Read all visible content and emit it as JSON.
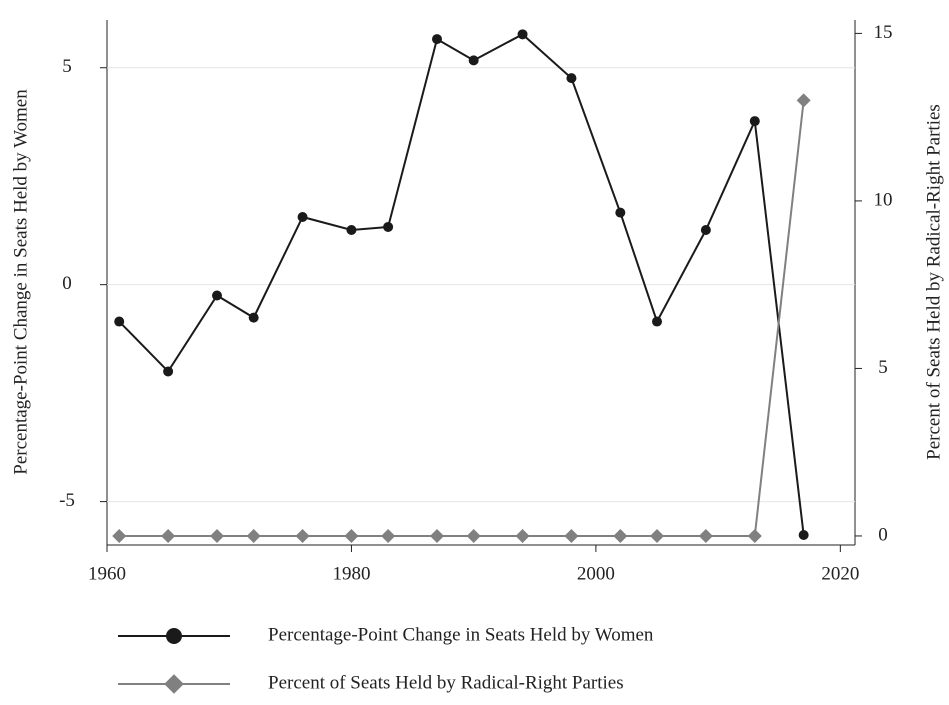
{
  "chart_data": {
    "type": "line",
    "x": [
      1961,
      1965,
      1969,
      1972,
      1976,
      1980,
      1983,
      1987,
      1990,
      1994,
      1998,
      2002,
      2005,
      2009,
      2013,
      2017
    ],
    "xlim": [
      1960,
      2021.2
    ],
    "xticks": [
      1960,
      1980,
      2000,
      2020
    ],
    "ylim": [
      -6,
      6.1
    ],
    "yticks": [
      -5,
      0,
      5
    ],
    "y2lim": [
      -0.27,
      15.4
    ],
    "y2ticks": [
      0,
      5,
      10,
      15
    ],
    "ylabel": "Percentage-Point Change in Seats Held by Women",
    "y2label": "Percent of Seats Held by Radical-Right Parties",
    "grid": true,
    "series": [
      {
        "name": "Percentage-Point Change in Seats Held by Women",
        "color": "#1a1a1a",
        "marker": "circle",
        "values": [
          -0.85,
          -2.0,
          -0.25,
          -0.76,
          1.56,
          1.26,
          1.33,
          5.66,
          5.17,
          5.77,
          4.76,
          1.66,
          -0.85,
          1.26,
          3.77,
          -5.77
        ]
      },
      {
        "name": "Percent of Seats Held by Radical-Right Parties",
        "color": "#808080",
        "marker": "diamond",
        "axis": "y2",
        "values": [
          0,
          0,
          0,
          0,
          0,
          0,
          0,
          0,
          0,
          0,
          0,
          0,
          0,
          0,
          0,
          13
        ]
      }
    ]
  }
}
